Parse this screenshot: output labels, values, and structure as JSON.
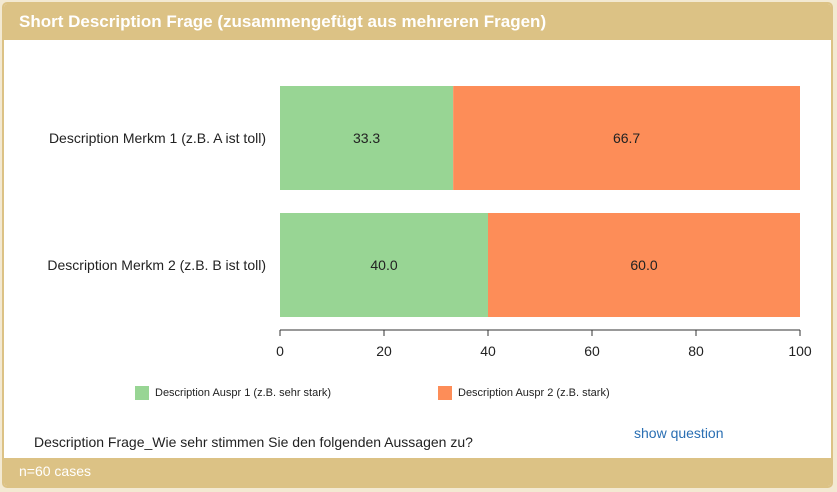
{
  "header": {
    "title": "Short Description Frage (zusammengefügt aus mehreren Fragen)"
  },
  "footer": {
    "cases": "n=60 cases"
  },
  "question": {
    "text": "Description Frage_Wie sehr stimmen Sie den folgenden Aussagen zu?",
    "show_label": "show question"
  },
  "chart_data": {
    "type": "bar",
    "orientation": "horizontal",
    "stacked": true,
    "categories": [
      "Description Merkm 1 (z.B. A ist toll)",
      "Description Merkm 2 (z.B. B ist toll)"
    ],
    "series": [
      {
        "name": "Description Auspr 1 (z.B. sehr stark)",
        "values": [
          33.3,
          40.0
        ],
        "labels": [
          "33.3",
          "40.0"
        ],
        "color": "#98d594"
      },
      {
        "name": "Description Auspr 2 (z.B. stark)",
        "values": [
          66.7,
          60.0
        ],
        "labels": [
          "66.7",
          "60.0"
        ],
        "color": "#fd8d58"
      }
    ],
    "xlim": [
      0,
      100
    ],
    "xticks": [
      0,
      20,
      40,
      60,
      80,
      100
    ],
    "legend_position": "bottom"
  }
}
